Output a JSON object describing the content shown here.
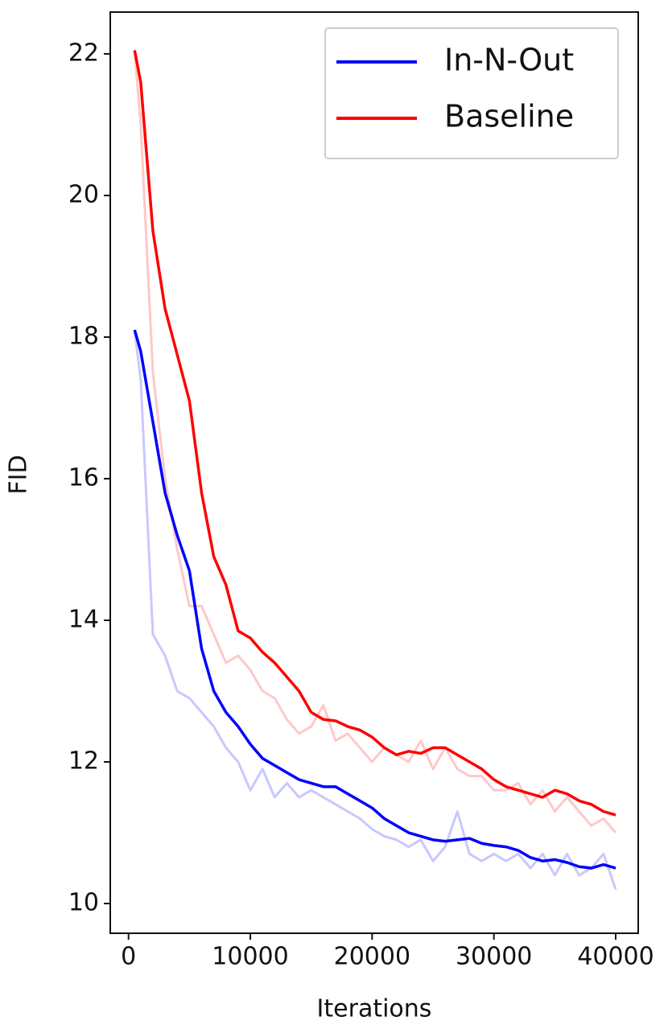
{
  "chart_data": {
    "type": "line",
    "xlabel": "Iterations",
    "ylabel": "FID",
    "x": [
      500,
      1000,
      2000,
      3000,
      4000,
      5000,
      6000,
      7000,
      8000,
      9000,
      10000,
      11000,
      12000,
      13000,
      14000,
      15000,
      16000,
      17000,
      18000,
      19000,
      20000,
      21000,
      22000,
      23000,
      24000,
      25000,
      26000,
      27000,
      28000,
      29000,
      30000,
      31000,
      32000,
      33000,
      34000,
      35000,
      36000,
      37000,
      38000,
      39000,
      40000
    ],
    "series": [
      {
        "color": "#c8c8ff",
        "values": [
          18.1,
          17.4,
          13.8,
          13.5,
          13.0,
          12.9,
          12.7,
          12.5,
          12.2,
          12.0,
          11.6,
          11.9,
          11.5,
          11.7,
          11.5,
          11.6,
          11.5,
          11.4,
          11.3,
          11.2,
          11.05,
          10.95,
          10.9,
          10.8,
          10.9,
          10.6,
          10.8,
          11.3,
          10.7,
          10.6,
          10.7,
          10.6,
          10.7,
          10.5,
          10.7,
          10.4,
          10.7,
          10.4,
          10.5,
          10.7,
          10.2
        ]
      },
      {
        "color": "#ffc8c8",
        "values": [
          22.05,
          21.0,
          17.5,
          16.0,
          15.0,
          14.2,
          14.2,
          13.8,
          13.4,
          13.5,
          13.3,
          13.0,
          12.9,
          12.6,
          12.4,
          12.5,
          12.8,
          12.3,
          12.4,
          12.2,
          12.0,
          12.2,
          12.1,
          12.0,
          12.3,
          11.9,
          12.2,
          11.9,
          11.8,
          11.8,
          11.6,
          11.6,
          11.7,
          11.4,
          11.6,
          11.3,
          11.5,
          11.3,
          11.1,
          11.2,
          11.0
        ]
      },
      {
        "name": "In-N-Out",
        "color": "#0000ff",
        "values": [
          18.1,
          17.8,
          16.8,
          15.8,
          15.2,
          14.7,
          13.6,
          13.0,
          12.7,
          12.5,
          12.25,
          12.05,
          11.95,
          11.85,
          11.75,
          11.7,
          11.65,
          11.65,
          11.55,
          11.45,
          11.35,
          11.2,
          11.1,
          11.0,
          10.95,
          10.9,
          10.88,
          10.9,
          10.92,
          10.85,
          10.82,
          10.8,
          10.75,
          10.65,
          10.6,
          10.62,
          10.58,
          10.52,
          10.5,
          10.55,
          10.5
        ]
      },
      {
        "name": "Baseline",
        "color": "#ff0000",
        "values": [
          22.05,
          21.6,
          19.5,
          18.4,
          17.75,
          17.1,
          15.8,
          14.9,
          14.5,
          13.85,
          13.75,
          13.55,
          13.4,
          13.2,
          13.0,
          12.7,
          12.6,
          12.58,
          12.5,
          12.45,
          12.35,
          12.2,
          12.1,
          12.15,
          12.12,
          12.2,
          12.2,
          12.1,
          12.0,
          11.9,
          11.75,
          11.65,
          11.6,
          11.55,
          11.5,
          11.6,
          11.55,
          11.45,
          11.4,
          11.3,
          11.25
        ]
      }
    ],
    "xlim": [
      -1500,
      41850
    ],
    "xticks": [
      0,
      10000,
      20000,
      30000,
      40000
    ],
    "ylim": [
      9.58,
      22.59
    ],
    "yticks": [
      10,
      12,
      14,
      16,
      18,
      20,
      22
    ],
    "grid": false,
    "legend": "upper right"
  }
}
